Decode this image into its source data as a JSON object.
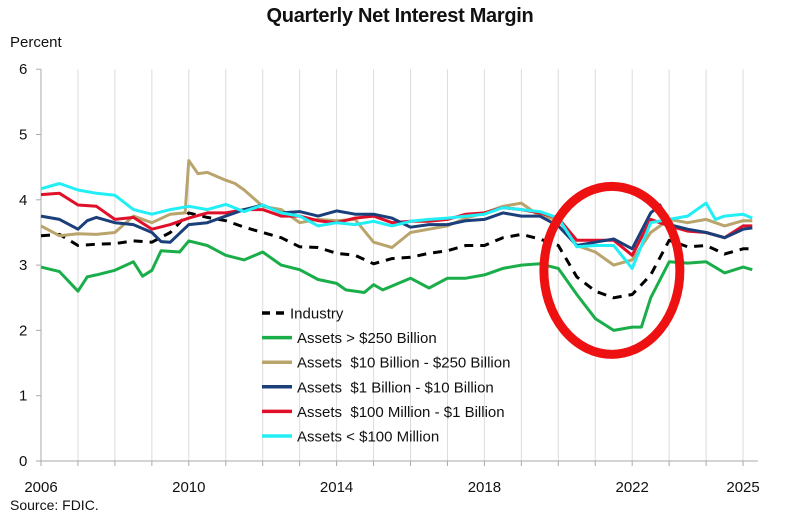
{
  "chart_data": {
    "type": "line",
    "title": "Quarterly Net Interest Margin",
    "ylabel": "Percent",
    "xlabel": "",
    "source": "Source: FDIC.",
    "xlim": [
      2006,
      2025.4
    ],
    "ylim": [
      0,
      6
    ],
    "yticks": [
      "0",
      "1",
      "2",
      "3",
      "4",
      "5",
      "6"
    ],
    "xticks": [
      "2006",
      "2010",
      "2014",
      "2018",
      "2022",
      "2025"
    ],
    "grid": "vertical, yearly",
    "legend_placement": "center-left",
    "annotation": "red circle highlighting 2020-2022 dip",
    "series": [
      {
        "name": "Industry",
        "color": "#000000",
        "dash": true,
        "x": [
          2006,
          2006.5,
          2007,
          2007.5,
          2008,
          2008.5,
          2009,
          2009.5,
          2010,
          2010.5,
          2011,
          2011.5,
          2012,
          2012.5,
          2013,
          2013.5,
          2014,
          2014.5,
          2015,
          2015.5,
          2016,
          2016.5,
          2017,
          2017.5,
          2018,
          2018.5,
          2019,
          2019.5,
          2020,
          2020.5,
          2021,
          2021.5,
          2022,
          2022.5,
          2023,
          2023.5,
          2024,
          2024.5,
          2025,
          2025.25
        ],
        "y": [
          3.45,
          3.47,
          3.3,
          3.32,
          3.33,
          3.37,
          3.35,
          3.5,
          3.8,
          3.73,
          3.68,
          3.58,
          3.5,
          3.42,
          3.28,
          3.27,
          3.18,
          3.15,
          3.02,
          3.1,
          3.12,
          3.18,
          3.22,
          3.3,
          3.3,
          3.42,
          3.47,
          3.4,
          3.3,
          2.82,
          2.6,
          2.5,
          2.55,
          2.85,
          3.38,
          3.28,
          3.3,
          3.17,
          3.25,
          3.25
        ]
      },
      {
        "name": "Assets > $250 Billion",
        "color": "#1aae4a",
        "dash": false,
        "x": [
          2006,
          2006.5,
          2007,
          2007.25,
          2007.5,
          2008,
          2008.5,
          2008.75,
          2009,
          2009.25,
          2009.75,
          2010,
          2010.5,
          2011,
          2011.5,
          2012,
          2012.5,
          2013,
          2013.5,
          2014,
          2014.25,
          2014.75,
          2015,
          2015.25,
          2015.5,
          2016,
          2016.5,
          2017,
          2017.5,
          2018,
          2018.5,
          2019,
          2019.5,
          2020,
          2020.5,
          2021,
          2021.5,
          2022,
          2022.25,
          2022.5,
          2023,
          2023.5,
          2024,
          2024.5,
          2025,
          2025.25
        ],
        "y": [
          2.97,
          2.9,
          2.6,
          2.82,
          2.85,
          2.92,
          3.05,
          2.83,
          2.92,
          3.22,
          3.2,
          3.37,
          3.3,
          3.15,
          3.08,
          3.2,
          3.0,
          2.93,
          2.78,
          2.72,
          2.62,
          2.58,
          2.7,
          2.62,
          2.68,
          2.8,
          2.65,
          2.8,
          2.8,
          2.85,
          2.95,
          3.0,
          3.02,
          2.95,
          2.55,
          2.18,
          2.0,
          2.05,
          2.05,
          2.5,
          3.05,
          3.03,
          3.05,
          2.88,
          2.97,
          2.93
        ]
      },
      {
        "name": "Assets  $10 Billion - $250 Billion",
        "color": "#b9a46c",
        "dash": false,
        "x": [
          2006,
          2006.5,
          2007,
          2007.5,
          2008,
          2008.5,
          2009,
          2009.5,
          2009.9,
          2010,
          2010.25,
          2010.5,
          2011,
          2011.25,
          2011.5,
          2012,
          2012.5,
          2013,
          2013.5,
          2014,
          2014.5,
          2015,
          2015.5,
          2016,
          2016.5,
          2017,
          2017.5,
          2018,
          2018.5,
          2019,
          2019.5,
          2020,
          2020.5,
          2021,
          2021.5,
          2022,
          2022.5,
          2023,
          2023.5,
          2024,
          2024.5,
          2025,
          2025.25
        ],
        "y": [
          3.6,
          3.45,
          3.48,
          3.47,
          3.5,
          3.75,
          3.65,
          3.78,
          3.8,
          4.6,
          4.4,
          4.42,
          4.3,
          4.25,
          4.15,
          3.9,
          3.85,
          3.65,
          3.7,
          3.68,
          3.7,
          3.35,
          3.27,
          3.5,
          3.55,
          3.6,
          3.72,
          3.8,
          3.9,
          3.95,
          3.75,
          3.7,
          3.3,
          3.2,
          3.0,
          3.08,
          3.5,
          3.7,
          3.65,
          3.7,
          3.6,
          3.68,
          3.68
        ]
      },
      {
        "name": "Assets  $1 Billion - $10 Billion",
        "color": "#1b3f7a",
        "dash": false,
        "x": [
          2006,
          2006.5,
          2007,
          2007.25,
          2007.5,
          2008,
          2008.5,
          2009,
          2009.25,
          2009.5,
          2010,
          2010.5,
          2011,
          2011.5,
          2012,
          2012.5,
          2013,
          2013.5,
          2014,
          2014.5,
          2015,
          2015.5,
          2016,
          2016.5,
          2017,
          2017.5,
          2018,
          2018.5,
          2019,
          2019.5,
          2020,
          2020.5,
          2021,
          2021.5,
          2022,
          2022.5,
          2022.75,
          2023,
          2023.5,
          2024,
          2024.5,
          2025,
          2025.25
        ],
        "y": [
          3.75,
          3.7,
          3.55,
          3.68,
          3.73,
          3.65,
          3.62,
          3.5,
          3.36,
          3.35,
          3.62,
          3.65,
          3.75,
          3.85,
          3.92,
          3.8,
          3.82,
          3.75,
          3.83,
          3.78,
          3.78,
          3.72,
          3.58,
          3.62,
          3.62,
          3.68,
          3.7,
          3.8,
          3.75,
          3.75,
          3.6,
          3.3,
          3.35,
          3.4,
          3.25,
          3.8,
          3.92,
          3.62,
          3.55,
          3.5,
          3.42,
          3.55,
          3.57
        ]
      },
      {
        "name": "Assets  $100 Million - $1 Billion",
        "color": "#e0102a",
        "dash": false,
        "x": [
          2006,
          2006.5,
          2007,
          2007.5,
          2008,
          2008.5,
          2009,
          2009.5,
          2010,
          2010.5,
          2011,
          2011.5,
          2012,
          2012.5,
          2013,
          2013.5,
          2014,
          2014.5,
          2015,
          2015.5,
          2016,
          2016.5,
          2017,
          2017.5,
          2018,
          2018.5,
          2019,
          2019.5,
          2020,
          2020.5,
          2021,
          2021.5,
          2022,
          2022.5,
          2023,
          2023.5,
          2024,
          2024.5,
          2025,
          2025.25
        ],
        "y": [
          4.08,
          4.1,
          3.92,
          3.9,
          3.7,
          3.73,
          3.55,
          3.62,
          3.72,
          3.8,
          3.8,
          3.85,
          3.85,
          3.75,
          3.75,
          3.68,
          3.65,
          3.72,
          3.75,
          3.65,
          3.67,
          3.67,
          3.7,
          3.78,
          3.8,
          3.88,
          3.85,
          3.8,
          3.72,
          3.38,
          3.38,
          3.38,
          3.15,
          3.7,
          3.6,
          3.52,
          3.5,
          3.42,
          3.6,
          3.6
        ]
      },
      {
        "name": "Assets < $100 Million",
        "color": "#22eef5",
        "dash": false,
        "x": [
          2006,
          2006.5,
          2007,
          2007.5,
          2008,
          2008.5,
          2009,
          2009.5,
          2010,
          2010.5,
          2011,
          2011.5,
          2012,
          2012.5,
          2013,
          2013.5,
          2014,
          2014.5,
          2015,
          2015.5,
          2016,
          2016.5,
          2017,
          2017.5,
          2018,
          2018.5,
          2019,
          2019.5,
          2020,
          2020.5,
          2021,
          2021.5,
          2022,
          2022.5,
          2023,
          2023.5,
          2024,
          2024.25,
          2024.5,
          2025,
          2025.25
        ],
        "y": [
          4.17,
          4.25,
          4.15,
          4.1,
          4.07,
          3.85,
          3.78,
          3.85,
          3.9,
          3.85,
          3.93,
          3.82,
          3.92,
          3.8,
          3.75,
          3.6,
          3.65,
          3.62,
          3.67,
          3.6,
          3.67,
          3.7,
          3.72,
          3.75,
          3.78,
          3.88,
          3.85,
          3.82,
          3.72,
          3.28,
          3.3,
          3.3,
          2.95,
          3.65,
          3.7,
          3.75,
          3.95,
          3.7,
          3.75,
          3.78,
          3.72
        ]
      }
    ]
  }
}
